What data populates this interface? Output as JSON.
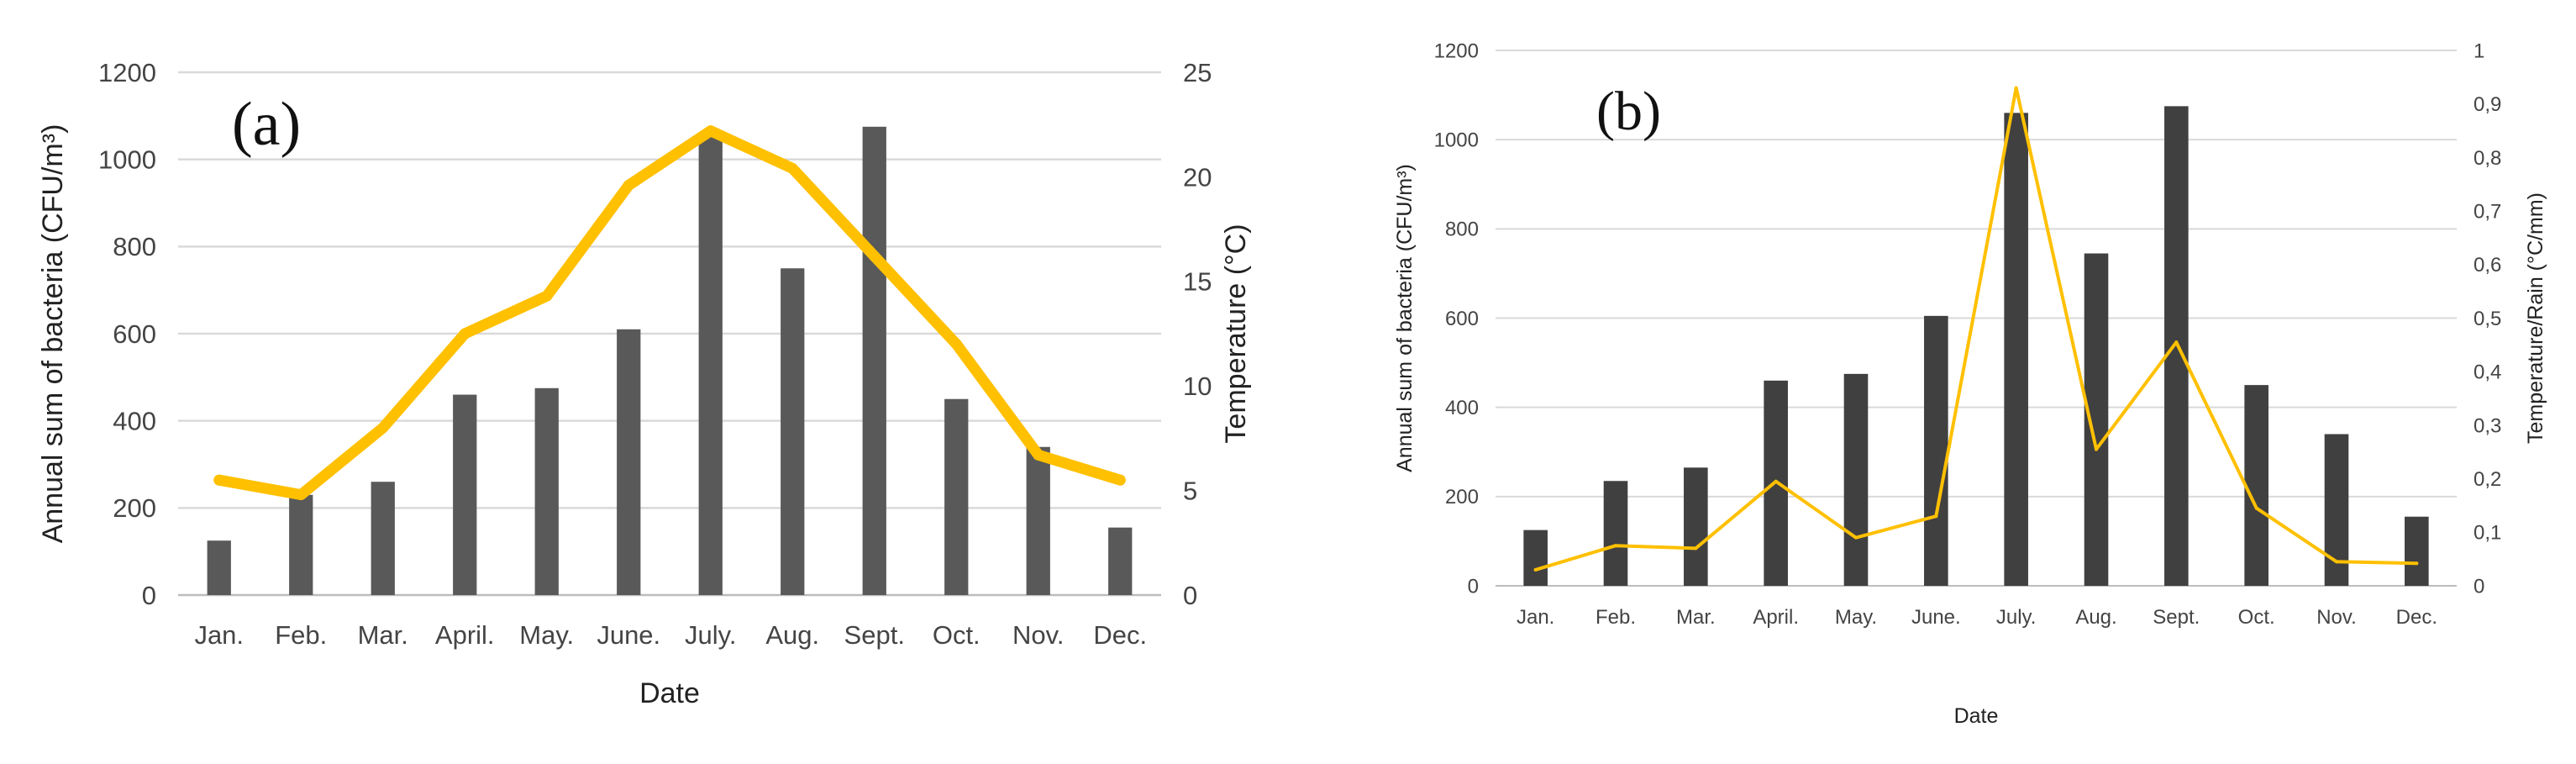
{
  "chart_data": [
    {
      "type": "bar",
      "title": "(a)",
      "categories": [
        "Jan.",
        "Feb.",
        "Mar.",
        "April.",
        "May.",
        "June.",
        "July.",
        "Aug.",
        "Sept.",
        "Oct.",
        "Nov.",
        "Dec."
      ],
      "xlabel": "Date",
      "ylabel": "Annual sum of bacteria (CFU/m³)",
      "ylim": [
        0,
        1200
      ],
      "yticks": [
        "0",
        "200",
        "400",
        "600",
        "800",
        "1000",
        "1200"
      ],
      "y2label": "Temperature (°C)",
      "y2lim": [
        0,
        25
      ],
      "y2ticks": [
        "0",
        "5",
        "10",
        "15",
        "20",
        "25"
      ],
      "series": [
        {
          "name": "Annual sum of bacteria",
          "kind": "bar",
          "axis": "left",
          "color": "#595959",
          "values": [
            125,
            230,
            260,
            460,
            475,
            610,
            1060,
            750,
            1075,
            450,
            340,
            155
          ]
        },
        {
          "name": "Temperature",
          "kind": "line",
          "axis": "right",
          "color": "#ffc000",
          "values": [
            5.5,
            4.8,
            8.0,
            12.5,
            14.3,
            19.6,
            22.2,
            20.4,
            16.2,
            12.0,
            6.7,
            5.5
          ]
        }
      ]
    },
    {
      "type": "bar",
      "title": "(b)",
      "categories": [
        "Jan.",
        "Feb.",
        "Mar.",
        "April.",
        "May.",
        "June.",
        "July.",
        "Aug.",
        "Sept.",
        "Oct.",
        "Nov.",
        "Dec."
      ],
      "xlabel": "Date",
      "ylabel": "Annual sum of bacteria (CFU/m³)",
      "ylim": [
        0,
        1200
      ],
      "yticks": [
        "0",
        "200",
        "400",
        "600",
        "800",
        "1000",
        "1200"
      ],
      "y2label": "Temperature/Rain (°C/mm)",
      "y2lim": [
        0,
        1
      ],
      "y2ticks": [
        "0",
        "0,1",
        "0,2",
        "0,3",
        "0,4",
        "0,5",
        "0,6",
        "0,7",
        "0,8",
        "0,9",
        "1"
      ],
      "series": [
        {
          "name": "Annual sum of bacteria",
          "kind": "bar",
          "axis": "left",
          "color": "#404040",
          "values": [
            125,
            235,
            265,
            460,
            475,
            605,
            1060,
            745,
            1075,
            450,
            340,
            155
          ]
        },
        {
          "name": "Temperature/Rain",
          "kind": "line",
          "axis": "right",
          "color": "#ffc000",
          "values": [
            0.03,
            0.075,
            0.07,
            0.195,
            0.09,
            0.13,
            0.93,
            0.255,
            0.455,
            0.145,
            0.045,
            0.042
          ]
        }
      ]
    }
  ]
}
